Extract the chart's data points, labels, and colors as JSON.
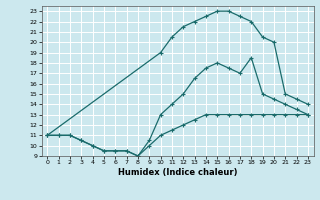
{
  "xlabel": "Humidex (Indice chaleur)",
  "bg_color": "#cce8ee",
  "grid_color": "#ffffff",
  "line_color": "#1a6b6b",
  "xlim": [
    -0.5,
    23.5
  ],
  "ylim": [
    9,
    23.5
  ],
  "xticks": [
    0,
    1,
    2,
    3,
    4,
    5,
    6,
    7,
    8,
    9,
    10,
    11,
    12,
    13,
    14,
    15,
    16,
    17,
    18,
    19,
    20,
    21,
    22,
    23
  ],
  "yticks": [
    9,
    10,
    11,
    12,
    13,
    14,
    15,
    16,
    17,
    18,
    19,
    20,
    21,
    22,
    23
  ],
  "line_bottom_x": [
    0,
    1,
    2,
    3,
    4,
    5,
    6,
    7,
    8,
    9,
    10,
    11,
    12,
    13,
    14,
    15,
    16,
    17,
    18,
    19,
    20,
    21,
    22,
    23
  ],
  "line_bottom_y": [
    11.0,
    11.0,
    11.0,
    10.5,
    10.0,
    9.5,
    9.5,
    9.5,
    9.0,
    10.0,
    11.0,
    11.5,
    12.0,
    12.5,
    13.0,
    13.0,
    13.0,
    13.0,
    13.0,
    13.0,
    13.0,
    13.0,
    13.0,
    13.0
  ],
  "line_mid_x": [
    0,
    1,
    2,
    3,
    4,
    5,
    6,
    7,
    8,
    9,
    10,
    11,
    12,
    13,
    14,
    15,
    16,
    17,
    18,
    19,
    20,
    21,
    22,
    23
  ],
  "line_mid_y": [
    11.0,
    11.0,
    11.0,
    10.5,
    10.0,
    9.5,
    9.5,
    9.5,
    9.0,
    10.5,
    13.0,
    14.0,
    15.0,
    16.5,
    17.5,
    18.0,
    17.5,
    17.0,
    18.5,
    15.0,
    14.5,
    14.0,
    13.5,
    13.0
  ],
  "line_top_x": [
    0,
    10,
    11,
    12,
    13,
    14,
    15,
    16,
    17,
    18,
    19,
    20,
    21,
    22,
    23
  ],
  "line_top_y": [
    11.0,
    19.0,
    20.5,
    21.5,
    22.0,
    22.5,
    23.0,
    23.0,
    22.5,
    22.0,
    20.5,
    20.0,
    15.0,
    14.5,
    14.0
  ]
}
